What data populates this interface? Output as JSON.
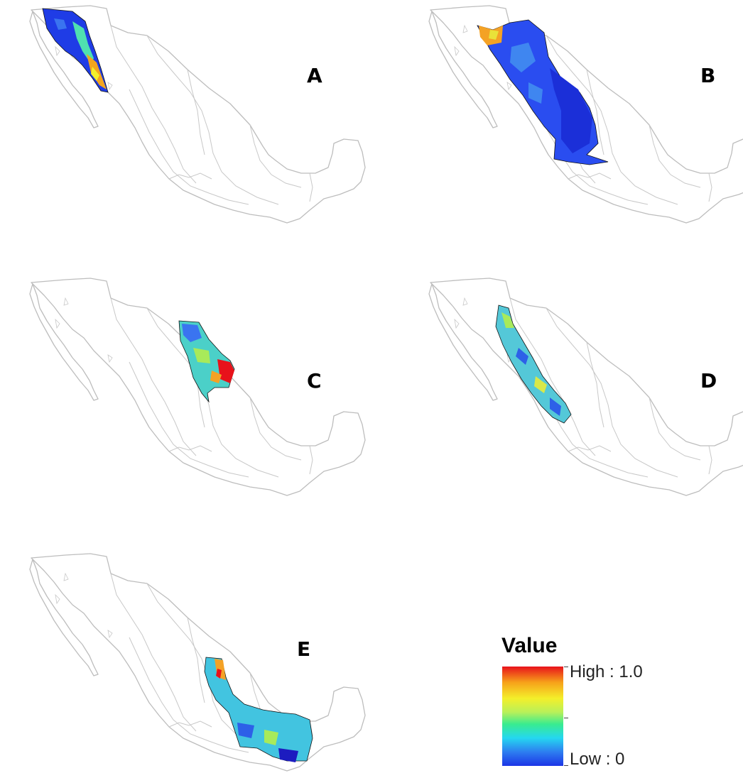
{
  "panels": [
    {
      "letter": "A"
    },
    {
      "letter": "B"
    },
    {
      "letter": "C"
    },
    {
      "letter": "D"
    },
    {
      "letter": "E"
    }
  ],
  "legend": {
    "title": "Value",
    "high_label": "High : 1.0",
    "low_label": "Low : 0",
    "colors": [
      "#e8121b",
      "#f7a21a",
      "#f4ef2a",
      "#39ec8f",
      "#25d7f0",
      "#1c35e6"
    ]
  },
  "colors": {
    "outline": "#bdbdbd",
    "region_border": "#111111"
  }
}
